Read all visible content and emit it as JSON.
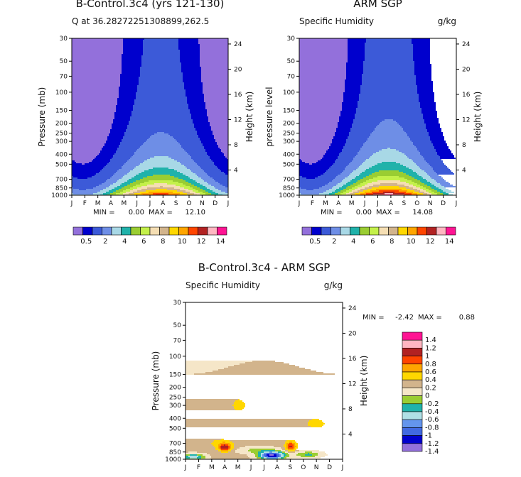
{
  "chart_data": [
    {
      "id": "p1",
      "type": "contour",
      "title": "B-Control.3c4 (yrs 121-130)",
      "subtitle_left": "Q at 36.28272251308899,262.5",
      "subtitle_right": "",
      "xlabel": "",
      "ylabel": "Pressure (mb)",
      "ylabel_right": "Height (km)",
      "months": [
        "J",
        "F",
        "M",
        "A",
        "M",
        "J",
        "J",
        "A",
        "S",
        "O",
        "N",
        "D",
        "J"
      ],
      "pressure_ticks": [
        30,
        50,
        70,
        100,
        150,
        200,
        250,
        300,
        400,
        500,
        700,
        850,
        1000
      ],
      "height_ticks": [
        24,
        20,
        16,
        12,
        8,
        4
      ],
      "stats": {
        "min_label": "MIN =",
        "min": "0.00",
        "max_label": "MAX =",
        "max": "12.10"
      },
      "field": {
        "peak": 12.1,
        "amp": 0.45,
        "floor": 0.3
      }
    },
    {
      "id": "p2",
      "type": "contour",
      "title": "ARM SGP",
      "subtitle_left": "Specific Humidity",
      "subtitle_right": "g/kg",
      "xlabel": "",
      "ylabel": "pressure level",
      "ylabel_right": "Height (km)",
      "months": [
        "J",
        "F",
        "M",
        "A",
        "M",
        "J",
        "J",
        "A",
        "S",
        "O",
        "N",
        "D",
        "J"
      ],
      "pressure_ticks": [
        30,
        50,
        70,
        100,
        150,
        200,
        250,
        300,
        400,
        500,
        700,
        850,
        1000
      ],
      "height_ticks": [
        24,
        20,
        16,
        12,
        8,
        4
      ],
      "stats": {
        "min_label": "MIN =",
        "min": "0.00",
        "max_label": "MAX =",
        "max": "14.08"
      },
      "field": {
        "peak": 14.08,
        "amp": 0.5,
        "floor": 0.3
      }
    },
    {
      "id": "p3",
      "type": "contour",
      "title": "B-Control.3c4 - ARM SGP",
      "subtitle_left": "Specific Humidity",
      "subtitle_right": "g/kg",
      "xlabel": "",
      "ylabel": "Pressure (mb)",
      "ylabel_right": "Height (km)",
      "months": [
        "J",
        "F",
        "M",
        "A",
        "M",
        "J",
        "J",
        "A",
        "S",
        "O",
        "N",
        "D",
        "J"
      ],
      "pressure_ticks": [
        30,
        50,
        70,
        100,
        150,
        200,
        250,
        300,
        400,
        500,
        700,
        850,
        1000
      ],
      "height_ticks": [
        24,
        20,
        16,
        12,
        8,
        4
      ],
      "stats": {
        "min_label": "MIN =",
        "min": "-2.42",
        "max_label": "MAX =",
        "max": "0.88"
      }
    }
  ],
  "colorbars": {
    "absolute": {
      "colors": [
        "#9370db",
        "#0000cd",
        "#3c5ad8",
        "#6e8ee6",
        "#a8d8e6",
        "#20b2aa",
        "#9acd32",
        "#c4f04a",
        "#f5deb3",
        "#d2b48c",
        "#ffd700",
        "#ffa500",
        "#ff4500",
        "#b22222",
        "#ffb6c1",
        "#ff1493"
      ],
      "labels": [
        "0.5",
        "2",
        "4",
        "6",
        "8",
        "10",
        "12",
        "14"
      ]
    },
    "difference": {
      "levels": [
        -1.4,
        -1.2,
        -1,
        -0.8,
        -0.6,
        -0.4,
        -0.2,
        0,
        0.2,
        0.4,
        0.6,
        0.8,
        1,
        1.2,
        1.4
      ],
      "labels": [
        "1.4",
        "1.2",
        "1",
        "0.8",
        "0.6",
        "0.4",
        "0.2",
        "0",
        "-0.2",
        "-0.4",
        "-0.6",
        "-0.8",
        "-1",
        "-1.2",
        "-1.4"
      ],
      "colors": [
        "#9370db",
        "#0000cd",
        "#4169e1",
        "#6495ed",
        "#b0e0e6",
        "#20b2aa",
        "#9acd32",
        "#f5e6c8",
        "#d2b48c",
        "#ffd700",
        "#ffa500",
        "#ff4500",
        "#b22222",
        "#ffb6c1",
        "#ff1493"
      ]
    }
  }
}
